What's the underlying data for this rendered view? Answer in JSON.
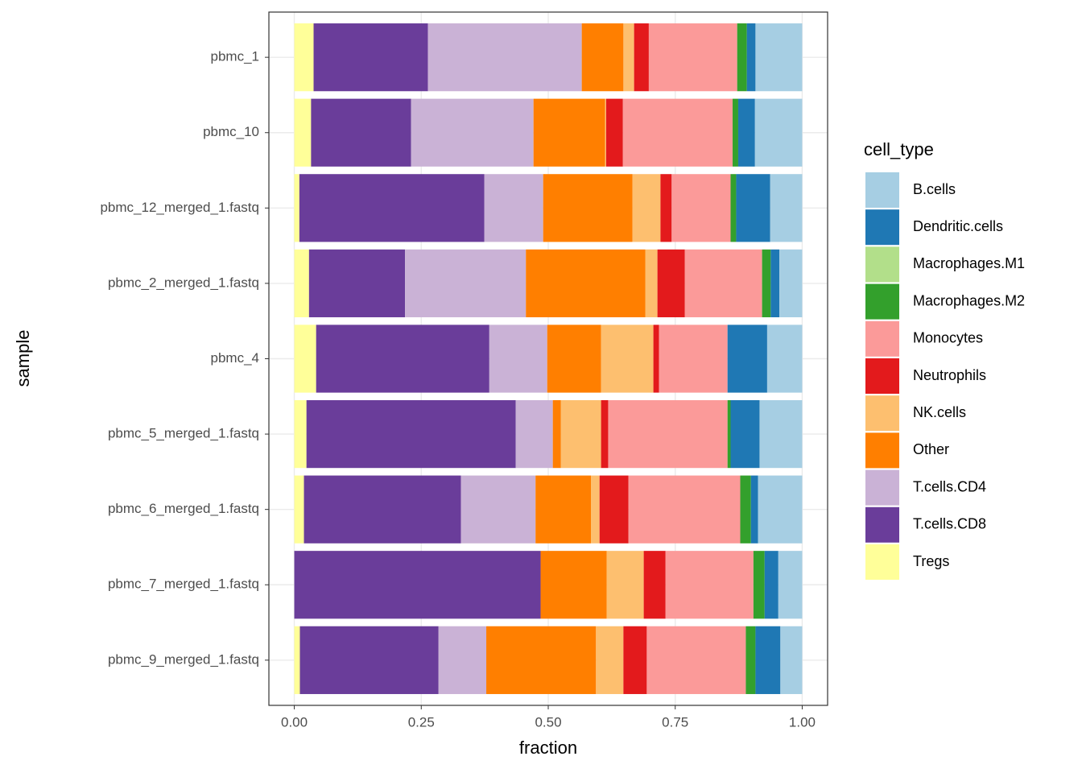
{
  "chart_data": {
    "type": "stacked_barh",
    "x_label": "fraction",
    "y_label": "sample",
    "legend_title": "cell_type",
    "categories": [
      "pbmc_1",
      "pbmc_10",
      "pbmc_12_merged_1.fastq",
      "pbmc_2_merged_1.fastq",
      "pbmc_4",
      "pbmc_5_merged_1.fastq",
      "pbmc_6_merged_1.fastq",
      "pbmc_7_merged_1.fastq",
      "pbmc_9_merged_1.fastq"
    ],
    "series": [
      {
        "name": "B.cells",
        "color": "#a6cee3",
        "values": [
          0.092,
          0.093,
          0.063,
          0.045,
          0.069,
          0.084,
          0.087,
          0.047,
          0.043
        ]
      },
      {
        "name": "Dendritic.cells",
        "color": "#1f78b4",
        "values": [
          0.017,
          0.033,
          0.067,
          0.017,
          0.078,
          0.057,
          0.014,
          0.027,
          0.049
        ]
      },
      {
        "name": "Macrophages.M1",
        "color": "#b2df8a",
        "values": [
          0,
          0,
          0,
          0,
          0,
          0,
          0,
          0,
          0
        ]
      },
      {
        "name": "Macrophages.M2",
        "color": "#33a02c",
        "values": [
          0.019,
          0.011,
          0.011,
          0.017,
          0,
          0.006,
          0.021,
          0.022,
          0.019
        ]
      },
      {
        "name": "Monocytes",
        "color": "#fb9a99",
        "values": [
          0.174,
          0.216,
          0.116,
          0.152,
          0.135,
          0.235,
          0.22,
          0.173,
          0.195
        ]
      },
      {
        "name": "Neutrophils",
        "color": "#e31a1c",
        "values": [
          0.029,
          0.033,
          0.022,
          0.054,
          0.011,
          0.014,
          0.057,
          0.043,
          0.046
        ]
      },
      {
        "name": "NK.cells",
        "color": "#fdbf6f",
        "values": [
          0.021,
          0.002,
          0.055,
          0.024,
          0.103,
          0.079,
          0.017,
          0.073,
          0.054
        ]
      },
      {
        "name": "Other",
        "color": "#ff7f00",
        "values": [
          0.082,
          0.141,
          0.176,
          0.235,
          0.106,
          0.016,
          0.109,
          0.13,
          0.216
        ]
      },
      {
        "name": "T.cells.CD4",
        "color": "#cab2d6",
        "values": [
          0.303,
          0.241,
          0.116,
          0.238,
          0.114,
          0.073,
          0.147,
          0,
          0.094
        ]
      },
      {
        "name": "T.cells.CD8",
        "color": "#6a3d9a",
        "values": [
          0.225,
          0.197,
          0.364,
          0.189,
          0.341,
          0.412,
          0.309,
          0.485,
          0.273
        ]
      },
      {
        "name": "Tregs",
        "color": "#ffff99",
        "values": [
          0.038,
          0.033,
          0.01,
          0.029,
          0.043,
          0.024,
          0.019,
          0,
          0.011
        ]
      }
    ],
    "xlim": [
      -0.05,
      1.05
    ],
    "xticks": [
      {
        "value": 0,
        "label": "0.00"
      },
      0.25,
      {
        "value": 0.5,
        "label": "0.50"
      },
      0.75,
      {
        "value": 1,
        "label": "1.00"
      }
    ],
    "grid": true
  }
}
